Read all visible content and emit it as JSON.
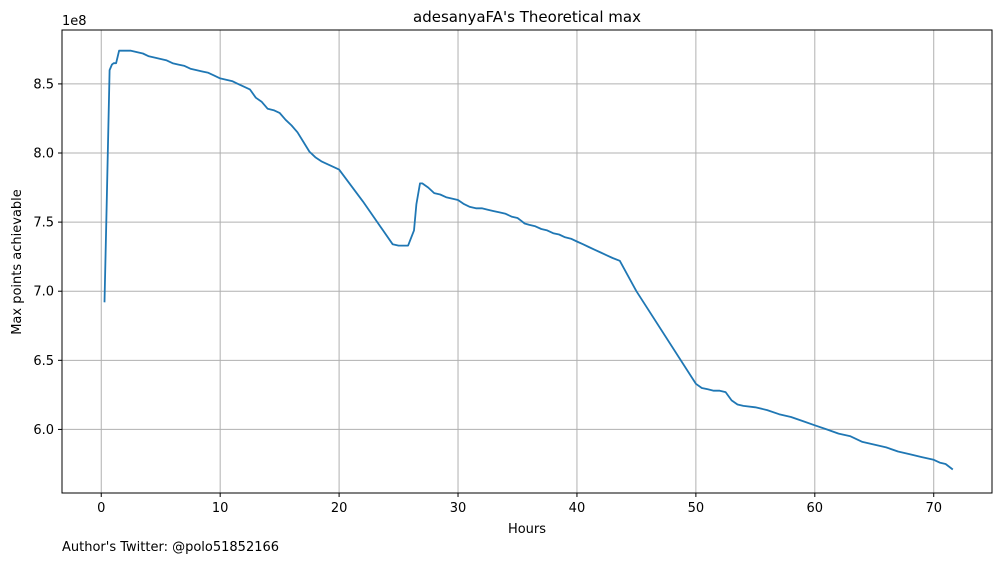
{
  "chart_data": {
    "type": "line",
    "title": "adesanyaFA's Theoretical max",
    "xlabel": "Hours",
    "ylabel": "Max points achievable",
    "offset_text": "1e8",
    "footnote": "Author's Twitter: @polo51852166",
    "xlim": [
      -3.3,
      74.9
    ],
    "ylim": [
      5.54,
      8.89
    ],
    "x_ticks": [
      0,
      10,
      20,
      30,
      40,
      50,
      60,
      70
    ],
    "x_tick_labels": [
      "0",
      "10",
      "20",
      "30",
      "40",
      "50",
      "60",
      "70"
    ],
    "y_ticks": [
      6.0,
      6.5,
      7.0,
      7.5,
      8.0,
      8.5
    ],
    "y_tick_labels": [
      "6.0",
      "6.5",
      "7.0",
      "7.5",
      "8.0",
      "8.5"
    ],
    "grid": true,
    "series_color": "#1f77b4",
    "series": [
      {
        "x": [
          0.27,
          0.45,
          0.7,
          0.9,
          1.05,
          1.25,
          1.5,
          2.0,
          2.5,
          3.0,
          3.5,
          4.0,
          4.5,
          5.0,
          5.5,
          6.0,
          6.5,
          7.0,
          7.5,
          8.0,
          8.5,
          9.0,
          9.5,
          10.0,
          10.5,
          11.0,
          11.5,
          12.0,
          12.5,
          13.0,
          13.5,
          14.0,
          14.5,
          15.0,
          15.5,
          16.0,
          16.5,
          17.0,
          17.5,
          18.0,
          18.5,
          19.0,
          19.5,
          20.0,
          22.0,
          24.5,
          25.0,
          25.8,
          26.3,
          26.5,
          26.8,
          27.0,
          27.5,
          28.0,
          28.5,
          29.0,
          29.5,
          30.0,
          30.5,
          31.0,
          31.5,
          32.0,
          32.5,
          33.0,
          33.5,
          34.0,
          34.5,
          35.0,
          35.3,
          35.6,
          36.0,
          36.5,
          37.0,
          37.5,
          38.0,
          38.5,
          39.0,
          39.5,
          40.0,
          40.5,
          41.0,
          41.5,
          42.0,
          42.5,
          43.0,
          43.6,
          45.0,
          50.0,
          50.5,
          51.0,
          51.5,
          52.0,
          52.5,
          53.0,
          53.5,
          54.0,
          55.0,
          56.0,
          57.0,
          58.0,
          59.0,
          60.0,
          61.0,
          62.0,
          63.0,
          64.0,
          65.0,
          66.0,
          67.0,
          68.0,
          69.0,
          70.0,
          70.5,
          71.0,
          71.6
        ],
        "y": [
          6.92,
          7.6,
          8.6,
          8.64,
          8.65,
          8.65,
          8.74,
          8.74,
          8.74,
          8.73,
          8.72,
          8.7,
          8.69,
          8.68,
          8.67,
          8.65,
          8.64,
          8.63,
          8.61,
          8.6,
          8.59,
          8.58,
          8.56,
          8.54,
          8.53,
          8.52,
          8.5,
          8.48,
          8.46,
          8.4,
          8.37,
          8.32,
          8.31,
          8.29,
          8.24,
          8.2,
          8.15,
          8.08,
          8.01,
          7.97,
          7.94,
          7.92,
          7.9,
          7.88,
          7.65,
          7.34,
          7.33,
          7.33,
          7.44,
          7.63,
          7.78,
          7.78,
          7.75,
          7.71,
          7.7,
          7.68,
          7.67,
          7.66,
          7.63,
          7.61,
          7.6,
          7.6,
          7.59,
          7.58,
          7.57,
          7.56,
          7.54,
          7.53,
          7.51,
          7.49,
          7.48,
          7.47,
          7.45,
          7.44,
          7.42,
          7.41,
          7.39,
          7.38,
          7.36,
          7.34,
          7.32,
          7.3,
          7.28,
          7.26,
          7.24,
          7.22,
          7.0,
          6.33,
          6.3,
          6.29,
          6.28,
          6.28,
          6.27,
          6.21,
          6.18,
          6.17,
          6.16,
          6.14,
          6.11,
          6.09,
          6.06,
          6.03,
          6.0,
          5.97,
          5.95,
          5.91,
          5.89,
          5.87,
          5.84,
          5.82,
          5.8,
          5.78,
          5.76,
          5.75,
          5.71
        ]
      }
    ]
  }
}
